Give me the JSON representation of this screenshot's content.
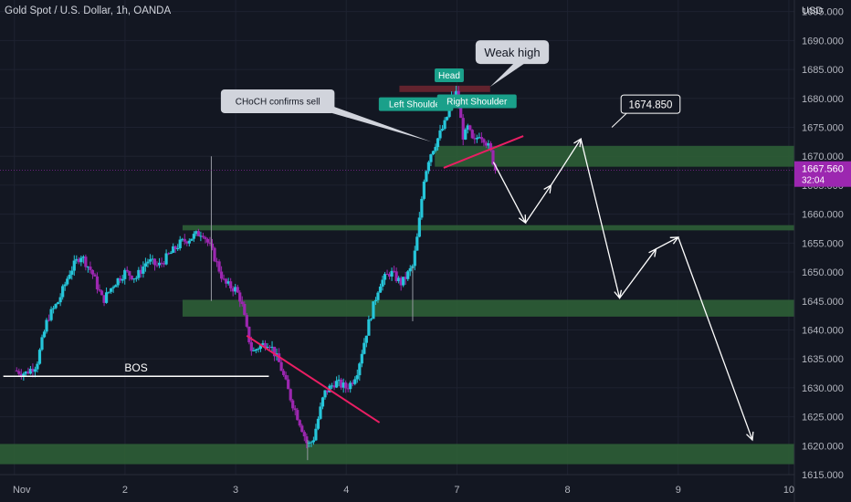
{
  "header": {
    "title": "Gold Spot / U.S. Dollar, 1h, OANDA"
  },
  "colors": {
    "background": "#131722",
    "grid": "#1e2230",
    "up": "#26c6da",
    "down": "#9c27b0",
    "zone": "#2e5e36",
    "zone_red": "#6b2530",
    "trendline": "#e91e63",
    "arrow": "#ffffff",
    "label_teal": "#1aa08a",
    "axis_text": "#b2b5be"
  },
  "chart_data": {
    "type": "candlestick",
    "symbol": "Gold Spot / U.S. Dollar",
    "interval": "1h",
    "source": "OANDA",
    "currency": "USD",
    "ylim": [
      1615,
      1697
    ],
    "y_ticks": [
      1615,
      1620,
      1625,
      1630,
      1635,
      1640,
      1645,
      1650,
      1655,
      1660,
      1665,
      1670,
      1675,
      1680,
      1685,
      1690,
      1695
    ],
    "x_ticks": [
      {
        "label": "Nov",
        "day": 0
      },
      {
        "label": "2",
        "day": 1
      },
      {
        "label": "3",
        "day": 2
      },
      {
        "label": "4",
        "day": 3
      },
      {
        "label": "7",
        "day": 4
      },
      {
        "label": "8",
        "day": 5
      },
      {
        "label": "9",
        "day": 6
      },
      {
        "label": "10",
        "day": 7
      }
    ],
    "xlim_days": [
      -0.13,
      7.05
    ],
    "last_price": "1667.560",
    "countdown": "32:04",
    "price_trajectory": [
      [
        0.0,
        1633
      ],
      [
        0.1,
        1632.5
      ],
      [
        0.2,
        1634
      ],
      [
        0.3,
        1642
      ],
      [
        0.4,
        1645
      ],
      [
        0.5,
        1650
      ],
      [
        0.6,
        1653
      ],
      [
        0.7,
        1650
      ],
      [
        0.8,
        1645
      ],
      [
        0.9,
        1648
      ],
      [
        1.0,
        1650
      ],
      [
        1.1,
        1649
      ],
      [
        1.2,
        1652
      ],
      [
        1.3,
        1651
      ],
      [
        1.4,
        1653
      ],
      [
        1.5,
        1655
      ],
      [
        1.6,
        1656
      ],
      [
        1.7,
        1657
      ],
      [
        1.8,
        1653
      ],
      [
        1.9,
        1648
      ],
      [
        2.0,
        1647
      ],
      [
        2.05,
        1645
      ],
      [
        2.1,
        1640
      ],
      [
        2.15,
        1636
      ],
      [
        2.2,
        1637
      ],
      [
        2.3,
        1638
      ],
      [
        2.4,
        1634
      ],
      [
        2.5,
        1628
      ],
      [
        2.6,
        1623
      ],
      [
        2.65,
        1620
      ],
      [
        2.7,
        1621
      ],
      [
        2.8,
        1629
      ],
      [
        2.9,
        1631
      ],
      [
        3.0,
        1630
      ],
      [
        3.05,
        1631
      ],
      [
        3.1,
        1633
      ],
      [
        3.2,
        1641
      ],
      [
        3.3,
        1648
      ],
      [
        3.4,
        1650
      ],
      [
        3.5,
        1648
      ],
      [
        3.6,
        1651
      ],
      [
        3.65,
        1657
      ],
      [
        3.7,
        1666
      ],
      [
        3.75,
        1670
      ],
      [
        3.8,
        1672
      ],
      [
        3.85,
        1674
      ],
      [
        3.9,
        1676
      ],
      [
        3.95,
        1680
      ],
      [
        4.0,
        1681
      ],
      [
        4.03,
        1677
      ],
      [
        4.06,
        1673
      ],
      [
        4.1,
        1675
      ],
      [
        4.15,
        1672
      ],
      [
        4.2,
        1674
      ],
      [
        4.25,
        1673
      ],
      [
        4.3,
        1671
      ],
      [
        4.35,
        1667.56
      ]
    ],
    "wicks": [
      {
        "day": 1.78,
        "high": 1670,
        "low": 1645
      },
      {
        "day": 3.6,
        "high": 1651,
        "low": 1641.5
      },
      {
        "day": 2.65,
        "high": 1621,
        "low": 1617.5
      }
    ],
    "zones": [
      {
        "name": "sell-zone-top",
        "from_day": 3.8,
        "to_day": 7.05,
        "low": 1668.2,
        "high": 1671.8
      },
      {
        "name": "resistance-upper",
        "from_day": 1.52,
        "to_day": 7.05,
        "low": 1657.2,
        "high": 1658.1
      },
      {
        "name": "zone-1645",
        "from_day": 1.52,
        "to_day": 7.05,
        "low": 1642.3,
        "high": 1645.2
      },
      {
        "name": "zone-1620",
        "from_day": -0.13,
        "to_day": 7.05,
        "low": 1616.8,
        "high": 1620.3
      },
      {
        "name": "weak-high-zone",
        "from_day": 3.48,
        "to_day": 4.3,
        "low": 1681.1,
        "high": 1682.2
      }
    ],
    "trendlines": [
      {
        "name": "neckline",
        "points": [
          [
            3.88,
            1668
          ],
          [
            4.6,
            1673.5
          ]
        ]
      },
      {
        "name": "downtrend-line",
        "points": [
          [
            2.1,
            1639
          ],
          [
            3.3,
            1624
          ]
        ]
      }
    ],
    "bos_line": {
      "label": "BOS",
      "from_day": -0.1,
      "to_day": 2.3,
      "price": 1632
    },
    "projection_path": [
      [
        4.33,
        1669
      ],
      [
        4.62,
        1658.5
      ],
      [
        4.85,
        1665
      ],
      [
        5.12,
        1673
      ],
      [
        5.47,
        1645.5
      ],
      [
        5.8,
        1654
      ],
      [
        6.0,
        1656
      ],
      [
        6.67,
        1621
      ]
    ],
    "annotations": [
      {
        "text": "Weak high",
        "day": 4.5,
        "price": 1688
      },
      {
        "text": "Head",
        "day": 3.93,
        "price": 1684
      },
      {
        "text": "Left Shoulder",
        "day": 3.63,
        "price": 1679
      },
      {
        "text": "Right Shoulder",
        "day": 4.18,
        "price": 1679.5
      },
      {
        "text": "CHoCH confirms sell",
        "day": 2.38,
        "price": 1679.5
      },
      {
        "text": "1674.850",
        "day": 5.75,
        "price": 1679
      }
    ]
  }
}
